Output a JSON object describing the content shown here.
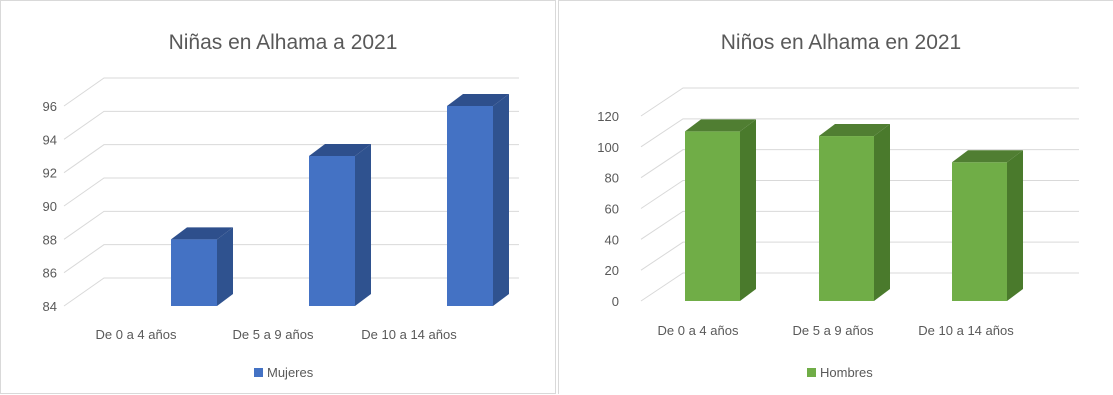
{
  "chart_data": [
    {
      "type": "bar",
      "title": "Niñas en Alhama a 2021",
      "categories": [
        "De 0 a 4 años",
        "De 5 a 9 años",
        "De 10 a 14 años"
      ],
      "series": [
        {
          "name": "Mujeres",
          "values": [
            88,
            93,
            96
          ]
        }
      ],
      "ylim": [
        84,
        96
      ],
      "yticks": [
        84,
        86,
        88,
        90,
        92,
        94,
        96
      ],
      "grid": true,
      "legend_position": "bottom",
      "colors": {
        "front": "#4472c4",
        "side": "#2f528f",
        "top": "#2e4f8c"
      }
    },
    {
      "type": "bar",
      "title": "Niños en Alhama en 2021",
      "categories": [
        "De 0 a 4 años",
        "De 5 a 9 años",
        "De 10 a 14 años"
      ],
      "series": [
        {
          "name": "Hombres",
          "values": [
            110,
            107,
            90
          ]
        }
      ],
      "ylim": [
        0,
        120
      ],
      "yticks": [
        0,
        20,
        40,
        60,
        80,
        100,
        120
      ],
      "grid": true,
      "legend_position": "bottom",
      "colors": {
        "front": "#70ad47",
        "side": "#4a7a2c",
        "top": "#507e32"
      }
    }
  ]
}
